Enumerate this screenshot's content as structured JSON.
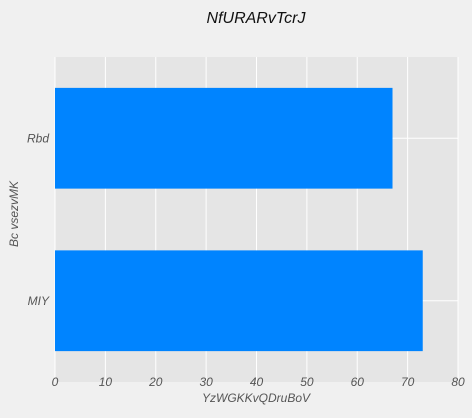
{
  "chart_data": {
    "type": "bar",
    "orientation": "horizontal",
    "title": "NfURARvTcrJ",
    "xlabel": "YzWGKKvQDruBoV",
    "ylabel": "Bc vsezvMK",
    "categories": [
      "MIY",
      "Rbd"
    ],
    "values": [
      73,
      67
    ],
    "xlim": [
      0,
      80
    ],
    "xticks": [
      0,
      10,
      20,
      30,
      40,
      50,
      60,
      70,
      80
    ],
    "grid": true,
    "bar_color": "#0084ff",
    "plot_background": "#e5e5e5",
    "grid_color": "#ffffff"
  }
}
